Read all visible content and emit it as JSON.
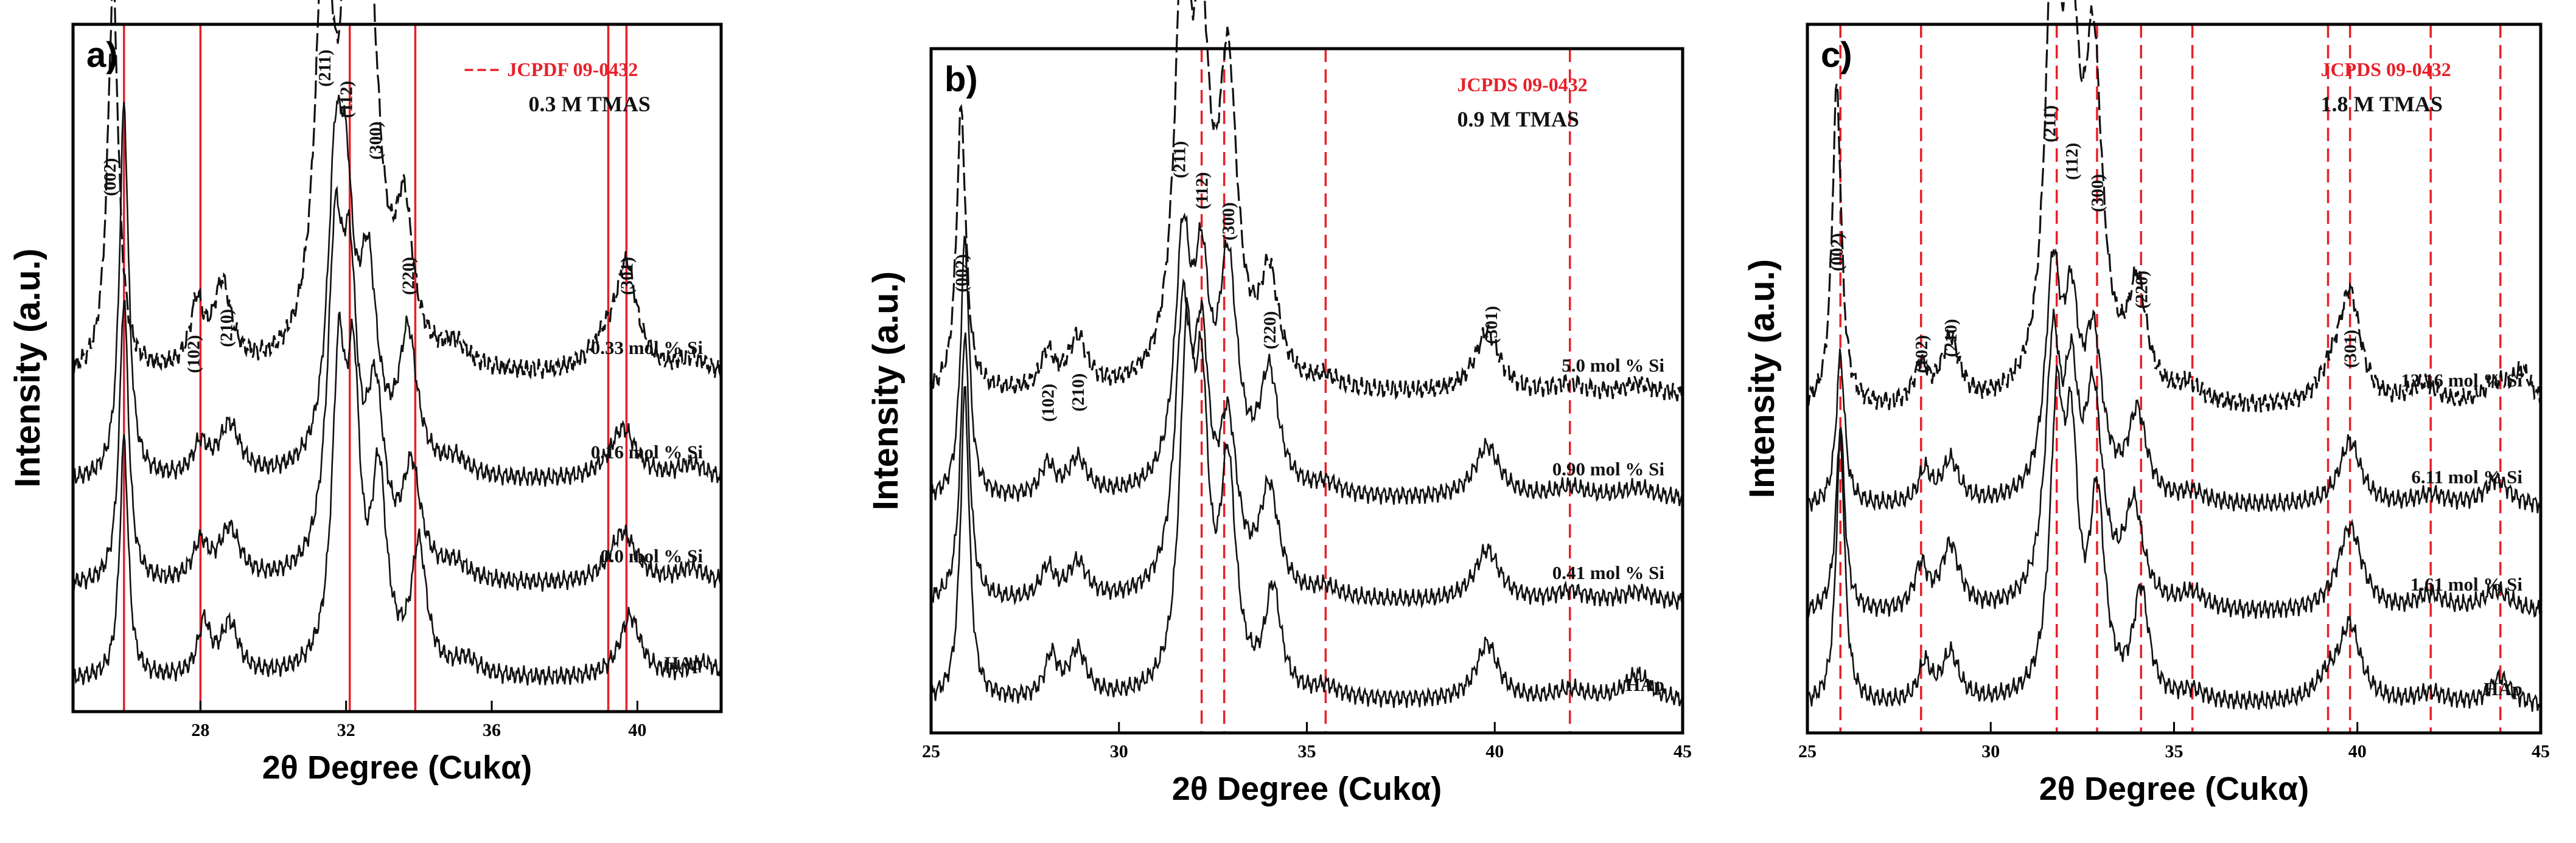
{
  "figure": {
    "y_axis_title": "Intensity (a.u.)",
    "x_axis_title": "2θ Degree (Cukα)"
  },
  "colors": {
    "reference": "#e8202a",
    "trace": "#111111",
    "axes": "#000000"
  },
  "chart_data": [
    {
      "type": "line",
      "panel": "a)",
      "title": "0.3 M TMAS",
      "reference_label": "JCPDF 09-0432",
      "reference_style": "solid",
      "xlabel": "2θ Degree (Cukα)",
      "ylabel": "Intensity (a.u.)",
      "xlim": [
        24.5,
        42.3
      ],
      "xticks": [
        28,
        32,
        36,
        40
      ],
      "xtick_labels": [
        "28",
        "32",
        "36",
        "40"
      ],
      "reference_lines": [
        25.9,
        28.0,
        32.1,
        33.9,
        39.2,
        39.7
      ],
      "peak_labels": [
        {
          "text": "(002)",
          "x": 25.5,
          "y": 0.97
        },
        {
          "text": "(102)",
          "x": 27.8,
          "y": 0.63
        },
        {
          "text": "(210)",
          "x": 28.7,
          "y": 0.68
        },
        {
          "text": "(211)",
          "x": 31.4,
          "y": 1.18
        },
        {
          "text": "(112)",
          "x": 32.0,
          "y": 1.12
        },
        {
          "text": "(300)",
          "x": 32.8,
          "y": 1.04
        },
        {
          "text": "(220)",
          "x": 33.7,
          "y": 0.78
        },
        {
          "text": "(301)",
          "x": 39.7,
          "y": 0.78
        }
      ],
      "series": [
        {
          "name": "0.33 mol % Si",
          "label": "0.33 mol % Si",
          "dashed": true,
          "offset": 0.62,
          "peaks": [
            [
              25.6,
              0.75,
              0.18
            ],
            [
              27.9,
              0.12,
              0.22
            ],
            [
              28.6,
              0.16,
              0.3
            ],
            [
              31.4,
              0.8,
              0.28
            ],
            [
              32.1,
              0.68,
              0.25
            ],
            [
              32.6,
              0.72,
              0.35
            ],
            [
              33.6,
              0.26,
              0.28
            ],
            [
              35.0,
              0.04,
              0.4
            ],
            [
              39.1,
              0.05,
              0.5
            ],
            [
              39.7,
              0.2,
              0.35
            ],
            [
              41.5,
              0.03,
              0.5
            ]
          ]
        },
        {
          "name": "0.16 mol % Si",
          "label": "0.16 mol % Si",
          "dashed": false,
          "offset": 0.42,
          "peaks": [
            [
              25.9,
              0.72,
              0.15
            ],
            [
              28.0,
              0.06,
              0.25
            ],
            [
              28.8,
              0.1,
              0.35
            ],
            [
              31.7,
              0.5,
              0.25
            ],
            [
              32.0,
              0.4,
              0.25
            ],
            [
              32.6,
              0.36,
              0.3
            ],
            [
              33.7,
              0.26,
              0.3
            ],
            [
              35.0,
              0.03,
              0.4
            ],
            [
              39.6,
              0.1,
              0.45
            ],
            [
              41.5,
              0.03,
              0.5
            ]
          ]
        },
        {
          "name": "0.0 mol % Si",
          "label": "0.0 mol % Si",
          "dashed": false,
          "offset": 0.22,
          "peaks": [
            [
              25.9,
              0.55,
              0.15
            ],
            [
              28.0,
              0.07,
              0.25
            ],
            [
              28.8,
              0.1,
              0.35
            ],
            [
              31.7,
              0.58,
              0.25
            ],
            [
              32.1,
              0.48,
              0.25
            ],
            [
              32.8,
              0.32,
              0.3
            ],
            [
              33.8,
              0.2,
              0.3
            ],
            [
              35.0,
              0.03,
              0.4
            ],
            [
              39.6,
              0.1,
              0.45
            ],
            [
              41.5,
              0.03,
              0.5
            ]
          ]
        },
        {
          "name": "HAp",
          "label": "HAp",
          "dashed": false,
          "offset": 0.04,
          "peaks": [
            [
              25.9,
              0.46,
              0.14
            ],
            [
              28.1,
              0.1,
              0.2
            ],
            [
              28.8,
              0.1,
              0.3
            ],
            [
              31.8,
              0.55,
              0.22
            ],
            [
              32.2,
              0.5,
              0.22
            ],
            [
              32.9,
              0.36,
              0.25
            ],
            [
              34.0,
              0.24,
              0.25
            ],
            [
              35.3,
              0.03,
              0.4
            ],
            [
              39.8,
              0.12,
              0.35
            ],
            [
              41.8,
              0.03,
              0.5
            ]
          ]
        }
      ]
    },
    {
      "type": "line",
      "panel": "b)",
      "title": "0.9 M TMAS",
      "reference_label": "JCPDS 09-0432",
      "reference_style": "dashed",
      "xlabel": "2θ Degree (Cukα)",
      "ylabel": "Intensity (a.u.)",
      "xlim": [
        25,
        45
      ],
      "xticks": [
        25,
        30,
        35,
        40,
        45
      ],
      "xtick_labels": [
        "25",
        "30",
        "35",
        "40",
        "45"
      ],
      "reference_lines": [
        32.2,
        32.8,
        35.5,
        42.0
      ],
      "peak_labels": [
        {
          "text": "(002)",
          "x": 25.8,
          "y": 0.83
        },
        {
          "text": "(102)",
          "x": 28.1,
          "y": 0.58
        },
        {
          "text": "(210)",
          "x": 28.9,
          "y": 0.6
        },
        {
          "text": "(211)",
          "x": 31.6,
          "y": 1.05
        },
        {
          "text": "(112)",
          "x": 32.2,
          "y": 0.99
        },
        {
          "text": "(300)",
          "x": 32.9,
          "y": 0.93
        },
        {
          "text": "(220)",
          "x": 34.0,
          "y": 0.72
        },
        {
          "text": "(301)",
          "x": 39.9,
          "y": 0.73
        }
      ],
      "series": [
        {
          "name": "5.0 mol % Si",
          "label": "5.0 mol % Si",
          "dashed": true,
          "offset": 0.63,
          "peaks": [
            [
              25.8,
              0.55,
              0.15
            ],
            [
              28.1,
              0.07,
              0.22
            ],
            [
              28.9,
              0.1,
              0.3
            ],
            [
              31.7,
              0.8,
              0.25
            ],
            [
              32.2,
              0.58,
              0.25
            ],
            [
              32.9,
              0.58,
              0.3
            ],
            [
              34.0,
              0.2,
              0.3
            ],
            [
              35.5,
              0.02,
              0.4
            ],
            [
              39.8,
              0.12,
              0.4
            ],
            [
              42.0,
              0.02,
              0.5
            ],
            [
              43.8,
              0.02,
              0.5
            ]
          ]
        },
        {
          "name": "0.90 mol % Si",
          "label": "0.90 mol % Si",
          "dashed": false,
          "offset": 0.43,
          "peaks": [
            [
              25.9,
              0.5,
              0.14
            ],
            [
              28.1,
              0.06,
              0.22
            ],
            [
              28.9,
              0.07,
              0.3
            ],
            [
              31.7,
              0.45,
              0.25
            ],
            [
              32.2,
              0.36,
              0.25
            ],
            [
              32.9,
              0.42,
              0.3
            ],
            [
              34.0,
              0.22,
              0.3
            ],
            [
              35.5,
              0.02,
              0.4
            ],
            [
              39.8,
              0.1,
              0.4
            ],
            [
              42.0,
              0.02,
              0.5
            ],
            [
              43.8,
              0.02,
              0.5
            ]
          ]
        },
        {
          "name": "0.41 mol % Si",
          "label": "0.41 mol % Si",
          "dashed": false,
          "offset": 0.23,
          "peaks": [
            [
              25.9,
              0.52,
              0.14
            ],
            [
              28.1,
              0.06,
              0.22
            ],
            [
              28.9,
              0.07,
              0.3
            ],
            [
              31.7,
              0.5,
              0.25
            ],
            [
              32.2,
              0.42,
              0.25
            ],
            [
              32.9,
              0.3,
              0.3
            ],
            [
              34.0,
              0.2,
              0.3
            ],
            [
              35.5,
              0.02,
              0.4
            ],
            [
              39.8,
              0.1,
              0.4
            ],
            [
              42.0,
              0.02,
              0.5
            ],
            [
              43.8,
              0.02,
              0.5
            ]
          ]
        },
        {
          "name": "HAp",
          "label": "HAp",
          "dashed": false,
          "offset": 0.04,
          "peaks": [
            [
              25.9,
              0.6,
              0.14
            ],
            [
              28.2,
              0.08,
              0.2
            ],
            [
              28.9,
              0.09,
              0.28
            ],
            [
              31.8,
              0.62,
              0.22
            ],
            [
              32.2,
              0.5,
              0.22
            ],
            [
              32.9,
              0.42,
              0.25
            ],
            [
              34.1,
              0.2,
              0.25
            ],
            [
              35.5,
              0.02,
              0.4
            ],
            [
              39.8,
              0.11,
              0.35
            ],
            [
              42.0,
              0.02,
              0.5
            ],
            [
              43.8,
              0.05,
              0.4
            ]
          ]
        }
      ]
    },
    {
      "type": "line",
      "panel": "c)",
      "title": "1.8 M TMAS",
      "reference_label": "JCPDS 09-0432",
      "reference_style": "dashed",
      "xlabel": "2θ Degree (Cukα)",
      "ylabel": "Intensity (a.u.)",
      "xlim": [
        25,
        45
      ],
      "xticks": [
        25,
        30,
        35,
        40,
        45
      ],
      "xtick_labels": [
        "25",
        "30",
        "35",
        "40",
        "45"
      ],
      "reference_lines": [
        25.9,
        28.1,
        31.8,
        32.9,
        34.1,
        35.5,
        39.2,
        39.8,
        42.0,
        43.9
      ],
      "peak_labels": [
        {
          "text": "(002)",
          "x": 25.8,
          "y": 0.84
        },
        {
          "text": "(102)",
          "x": 28.1,
          "y": 0.65
        },
        {
          "text": "(210)",
          "x": 28.9,
          "y": 0.68
        },
        {
          "text": "(211)",
          "x": 31.6,
          "y": 1.08
        },
        {
          "text": "(112)",
          "x": 32.2,
          "y": 1.01
        },
        {
          "text": "(300)",
          "x": 32.9,
          "y": 0.95
        },
        {
          "text": "(220)",
          "x": 34.1,
          "y": 0.77
        },
        {
          "text": "(301)",
          "x": 39.8,
          "y": 0.66
        }
      ],
      "series": [
        {
          "name": "12.16 mol % Si",
          "label": "12.16 mol % Si",
          "dashed": true,
          "offset": 0.58,
          "peaks": [
            [
              25.8,
              0.6,
              0.15
            ],
            [
              28.1,
              0.07,
              0.22
            ],
            [
              28.9,
              0.12,
              0.3
            ],
            [
              31.7,
              0.8,
              0.25
            ],
            [
              32.2,
              0.58,
              0.25
            ],
            [
              32.8,
              0.6,
              0.3
            ],
            [
              34.0,
              0.2,
              0.3
            ],
            [
              35.4,
              0.03,
              0.4
            ],
            [
              39.3,
              0.05,
              0.4
            ],
            [
              39.8,
              0.2,
              0.35
            ],
            [
              41.8,
              0.04,
              0.5
            ],
            [
              43.8,
              0.04,
              0.5
            ],
            [
              44.5,
              0.06,
              0.3
            ]
          ]
        },
        {
          "name": "6.11 mol % Si",
          "label": "6.11 mol % Si",
          "dashed": false,
          "offset": 0.4,
          "peaks": [
            [
              25.9,
              0.28,
              0.14
            ],
            [
              28.2,
              0.06,
              0.2
            ],
            [
              28.9,
              0.08,
              0.28
            ],
            [
              31.7,
              0.4,
              0.25
            ],
            [
              32.2,
              0.3,
              0.25
            ],
            [
              32.8,
              0.28,
              0.3
            ],
            [
              34.0,
              0.16,
              0.3
            ],
            [
              35.5,
              0.02,
              0.4
            ],
            [
              39.8,
              0.12,
              0.35
            ],
            [
              42.0,
              0.02,
              0.5
            ],
            [
              43.8,
              0.05,
              0.4
            ]
          ]
        },
        {
          "name": "1.61 mol % Si",
          "label": "1.61 mol % Si",
          "dashed": false,
          "offset": 0.2,
          "peaks": [
            [
              25.9,
              0.35,
              0.14
            ],
            [
              28.1,
              0.08,
              0.22
            ],
            [
              28.9,
              0.12,
              0.3
            ],
            [
              31.7,
              0.45,
              0.25
            ],
            [
              32.2,
              0.34,
              0.25
            ],
            [
              32.8,
              0.36,
              0.3
            ],
            [
              33.9,
              0.18,
              0.3
            ],
            [
              35.5,
              0.03,
              0.4
            ],
            [
              39.8,
              0.16,
              0.4
            ],
            [
              42.0,
              0.03,
              0.5
            ],
            [
              43.8,
              0.04,
              0.5
            ]
          ]
        },
        {
          "name": "HAp",
          "label": "HAp",
          "dashed": false,
          "offset": 0.03,
          "peaks": [
            [
              25.9,
              0.5,
              0.14
            ],
            [
              28.2,
              0.07,
              0.2
            ],
            [
              28.9,
              0.09,
              0.28
            ],
            [
              31.8,
              0.5,
              0.22
            ],
            [
              32.2,
              0.42,
              0.22
            ],
            [
              32.9,
              0.36,
              0.25
            ],
            [
              34.1,
              0.2,
              0.25
            ],
            [
              35.5,
              0.02,
              0.4
            ],
            [
              39.2,
              0.04,
              0.4
            ],
            [
              39.8,
              0.14,
              0.35
            ],
            [
              42.0,
              0.02,
              0.5
            ],
            [
              43.9,
              0.05,
              0.35
            ]
          ]
        }
      ]
    }
  ]
}
